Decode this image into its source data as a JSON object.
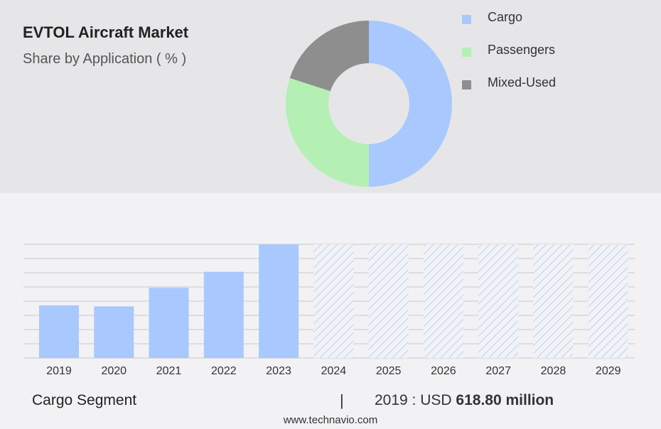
{
  "colors": {
    "cargo": "#a8c8fe",
    "passengers": "#b4f0b4",
    "mixed_used": "#8e8e8e",
    "bar": "#a8c8fe",
    "forecast_hatch": "#a8c8fe",
    "grid": "#c8c8cc"
  },
  "header": {
    "title": "EVTOL Aircraft Market",
    "subtitle": "Share by Application ( % )"
  },
  "chart_data": [
    {
      "type": "pie",
      "style": "donut",
      "labels": [
        "Cargo",
        "Passengers",
        "Mixed-Used"
      ],
      "values": [
        50,
        30,
        20
      ],
      "legend": "right"
    },
    {
      "type": "bar",
      "categories": [
        "2019",
        "2020",
        "2021",
        "2022",
        "2023",
        "2024",
        "2025",
        "2026",
        "2027",
        "2028",
        "2029"
      ],
      "values": [
        618.8,
        607,
        825,
        1014,
        1337,
        null,
        null,
        null,
        null,
        null,
        null
      ],
      "forecast_categories": [
        "2024",
        "2025",
        "2026",
        "2027",
        "2028",
        "2029"
      ],
      "ylim": [
        0,
        1337
      ],
      "grid": true
    }
  ],
  "footer": {
    "segment_label": "Cargo Segment",
    "separator": "|",
    "value_prefix": "2019 : USD",
    "value_bold": "618.80 million",
    "website": "www.technavio.com"
  }
}
